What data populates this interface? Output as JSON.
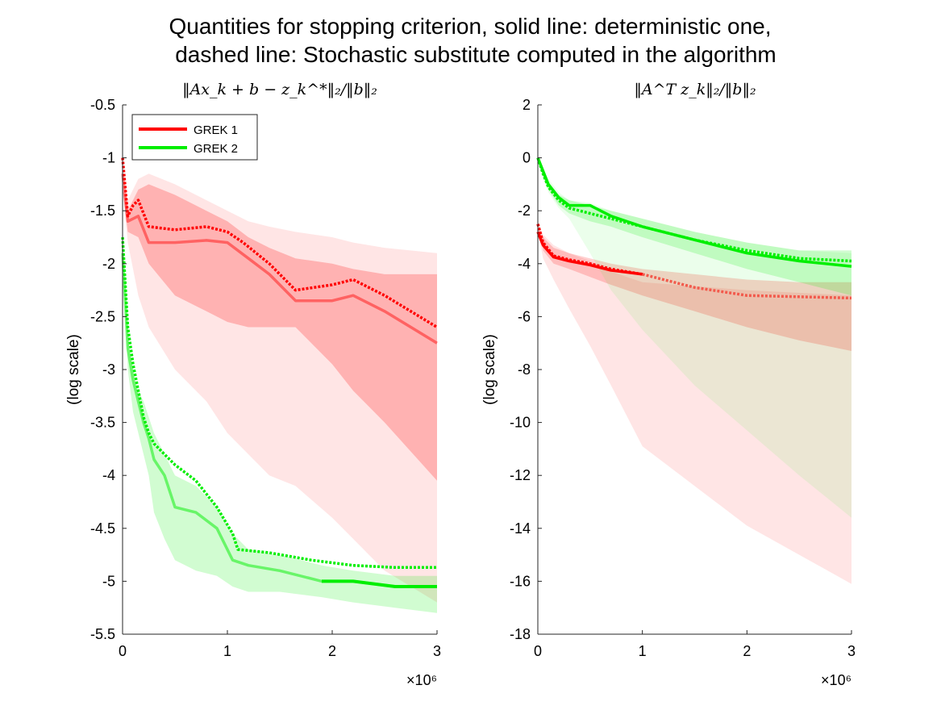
{
  "title_line1": "Quantities for stopping criterion, solid line: deterministic one,",
  "title_line2": "dashed line: Stochastic substitute computed in the algorithm",
  "colors": {
    "grek1": "#ff0000",
    "grek2": "#00ee00",
    "grek1_late": "#f25a4c"
  },
  "chart_data": [
    {
      "type": "line",
      "title": "‖Ax_k + b − z_k^*‖₂/‖b‖₂",
      "xlabel": "",
      "ylabel": "(log scale)",
      "xlim": [
        0,
        3000000
      ],
      "ylim": [
        -5.5,
        -0.5
      ],
      "xtick_labels": [
        "0",
        "1",
        "2",
        "3"
      ],
      "xtick_values": [
        0,
        1000000,
        2000000,
        3000000
      ],
      "ytick_values": [
        -0.5,
        -1,
        -1.5,
        -2,
        -2.5,
        -3,
        -3.5,
        -4,
        -4.5,
        -5,
        -5.5
      ],
      "ytick_labels": [
        "-0.5",
        "-1",
        "-1.5",
        "-2",
        "-2.5",
        "-3",
        "-3.5",
        "-4",
        "-4.5",
        "-5",
        "-5.5"
      ],
      "x_exponent_label": "×10⁶",
      "legend": {
        "placement": "top-left",
        "entries": [
          "GREK 1",
          "GREK 2"
        ]
      },
      "series": [
        {
          "name": "GREK 1",
          "style": "solid",
          "x": [
            0,
            50000,
            150000,
            250000,
            500000,
            800000,
            1000000,
            1200000,
            1400000,
            1650000,
            2000000,
            2200000,
            2500000,
            3000000
          ],
          "y": [
            -1.15,
            -1.6,
            -1.55,
            -1.8,
            -1.8,
            -1.78,
            -1.8,
            -1.95,
            -2.1,
            -2.35,
            -2.35,
            -2.3,
            -2.45,
            -2.75
          ],
          "band_inner": {
            "upper": [
              -1.3,
              -1.5,
              -1.3,
              -1.25,
              -1.35,
              -1.5,
              -1.6,
              -1.75,
              -1.85,
              -1.95,
              -2.0,
              -2.05,
              -2.1,
              -2.1
            ],
            "lower": [
              -1.3,
              -1.7,
              -1.75,
              -2.0,
              -2.3,
              -2.45,
              -2.55,
              -2.6,
              -2.6,
              -2.6,
              -2.95,
              -3.2,
              -3.5,
              -4.05
            ]
          },
          "band_outer": {
            "upper": [
              -1.3,
              -1.4,
              -1.2,
              -1.15,
              -1.25,
              -1.4,
              -1.5,
              -1.6,
              -1.65,
              -1.7,
              -1.75,
              -1.8,
              -1.85,
              -1.9
            ],
            "lower": [
              -1.3,
              -1.8,
              -2.3,
              -2.6,
              -3.0,
              -3.3,
              -3.6,
              -3.8,
              -4.0,
              -4.1,
              -4.4,
              -4.6,
              -4.9,
              -5.2
            ]
          }
        },
        {
          "name": "",
          "style": "dashed",
          "x": [
            0,
            50000,
            100000,
            150000,
            250000,
            500000,
            800000,
            1000000,
            1150000,
            1400000,
            1650000,
            2000000,
            2200000,
            2500000,
            3000000
          ],
          "y": [
            -1.0,
            -1.55,
            -1.45,
            -1.4,
            -1.65,
            -1.68,
            -1.65,
            -1.7,
            -1.8,
            -2.0,
            -2.25,
            -2.2,
            -2.15,
            -2.3,
            -2.6
          ]
        },
        {
          "name": "GREK 2",
          "style": "solid",
          "x": [
            0,
            50000,
            100000,
            150000,
            200000,
            250000,
            300000,
            400000,
            500000,
            700000,
            900000,
            1050000,
            1200000,
            1500000,
            1900000,
            2200000,
            2600000,
            3000000
          ],
          "y": [
            -1.9,
            -2.8,
            -3.1,
            -3.3,
            -3.5,
            -3.65,
            -3.85,
            -4.0,
            -4.3,
            -4.35,
            -4.5,
            -4.8,
            -4.85,
            -4.9,
            -5.0,
            -5.0,
            -5.05,
            -5.05
          ],
          "band": {
            "upper": [
              -1.9,
              -2.7,
              -3.0,
              -3.2,
              -3.3,
              -3.45,
              -3.6,
              -3.8,
              -4.0,
              -4.1,
              -4.3,
              -4.55,
              -4.7,
              -4.75,
              -4.85,
              -4.9,
              -4.95,
              -4.95
            ],
            "lower": [
              -1.9,
              -3.0,
              -3.4,
              -3.6,
              -3.8,
              -4.0,
              -4.35,
              -4.6,
              -4.8,
              -4.9,
              -4.95,
              -5.05,
              -5.1,
              -5.1,
              -5.15,
              -5.2,
              -5.25,
              -5.3
            ]
          }
        },
        {
          "name": "",
          "style": "dashed",
          "x": [
            0,
            50000,
            100000,
            150000,
            200000,
            250000,
            300000,
            400000,
            500000,
            700000,
            900000,
            1050000,
            1100000,
            1400000,
            1800000,
            2200000,
            2600000,
            3000000
          ],
          "y": [
            -1.75,
            -2.6,
            -2.95,
            -3.2,
            -3.45,
            -3.6,
            -3.7,
            -3.8,
            -3.9,
            -4.05,
            -4.3,
            -4.55,
            -4.7,
            -4.73,
            -4.8,
            -4.85,
            -4.87,
            -4.87
          ]
        }
      ]
    },
    {
      "type": "line",
      "title": "‖A^T z_k‖₂/‖b‖₂",
      "xlabel": "",
      "ylabel": "(log scale)",
      "xlim": [
        0,
        3000000
      ],
      "ylim": [
        -18,
        2
      ],
      "xtick_labels": [
        "0",
        "1",
        "2",
        "3"
      ],
      "xtick_values": [
        0,
        1000000,
        2000000,
        3000000
      ],
      "ytick_values": [
        2,
        0,
        -2,
        -4,
        -6,
        -8,
        -10,
        -12,
        -14,
        -16,
        -18
      ],
      "ytick_labels": [
        "2",
        "0",
        "-2",
        "-4",
        "-6",
        "-8",
        "-10",
        "-12",
        "-14",
        "-16",
        "-18"
      ],
      "x_exponent_label": "×10⁶",
      "series": [
        {
          "name": "GREK 1",
          "style": "solid",
          "x": [
            0,
            50000,
            150000,
            300000,
            500000,
            700000,
            1000000
          ],
          "y": [
            -2.8,
            -3.3,
            -3.75,
            -3.9,
            -4.05,
            -4.25,
            -4.4
          ],
          "band_outer": {
            "upper": [
              -2.5,
              -2.9,
              -3.3,
              -3.6,
              -3.9,
              -4.3,
              -4.7,
              -5.0,
              -5.2
            ],
            "lower": [
              -2.8,
              -3.8,
              -4.6,
              -5.7,
              -7.1,
              -8.6,
              -10.9,
              -13.9,
              -16.1
            ],
            "x": [
              0,
              50000,
              150000,
              300000,
              500000,
              700000,
              1000000,
              2000000,
              3000000
            ]
          }
        },
        {
          "name": "",
          "style": "dashed",
          "x": [
            0,
            50000,
            150000,
            300000,
            500000,
            700000,
            1000000,
            1500000,
            2000000,
            2500000,
            3000000
          ],
          "y": [
            -2.5,
            -3.2,
            -3.7,
            -3.85,
            -4.0,
            -4.2,
            -4.4,
            -4.9,
            -5.2,
            -5.25,
            -5.3
          ],
          "band": {
            "upper": [
              -2.5,
              -3.0,
              -3.4,
              -3.6,
              -3.8,
              -4.0,
              -4.2,
              -4.4,
              -4.6,
              -4.7,
              -4.7
            ],
            "lower": [
              -2.5,
              -3.5,
              -4.0,
              -4.2,
              -4.5,
              -4.8,
              -5.2,
              -5.8,
              -6.4,
              -6.9,
              -7.3
            ]
          }
        },
        {
          "name": "GREK 2",
          "style": "solid",
          "x": [
            0,
            50000,
            100000,
            200000,
            300000,
            500000,
            700000,
            1000000,
            1500000,
            2000000,
            2500000,
            3000000
          ],
          "y": [
            0.0,
            -0.5,
            -1.0,
            -1.5,
            -1.8,
            -1.8,
            -2.2,
            -2.6,
            -3.1,
            -3.6,
            -3.9,
            -4.1
          ],
          "band_outer": {
            "upper": [
              0.0,
              -0.4,
              -0.8,
              -1.3,
              -1.6,
              -1.7,
              -2.0,
              -2.3,
              -2.8,
              -3.2,
              -3.5,
              -3.6
            ],
            "lower": [
              0.0,
              -0.7,
              -1.3,
              -1.9,
              -2.3,
              -3.6,
              -5.0,
              -6.5,
              -8.6,
              -10.3,
              -12.0,
              -13.6
            ]
          }
        },
        {
          "name": "",
          "style": "dashed",
          "x": [
            0,
            50000,
            100000,
            200000,
            300000,
            500000,
            700000,
            1000000,
            1500000,
            2000000,
            2500000,
            3000000
          ],
          "y": [
            0.0,
            -0.6,
            -1.1,
            -1.6,
            -1.9,
            -2.1,
            -2.3,
            -2.6,
            -3.1,
            -3.5,
            -3.8,
            -3.9
          ],
          "band": {
            "upper": [
              0.0,
              -0.5,
              -0.9,
              -1.4,
              -1.6,
              -1.8,
              -2.0,
              -2.3,
              -2.8,
              -3.2,
              -3.5,
              -3.5
            ],
            "lower": [
              0.0,
              -0.7,
              -1.2,
              -1.8,
              -2.1,
              -2.4,
              -2.6,
              -3.0,
              -3.6,
              -4.2,
              -4.7,
              -5.2
            ]
          }
        }
      ]
    }
  ]
}
